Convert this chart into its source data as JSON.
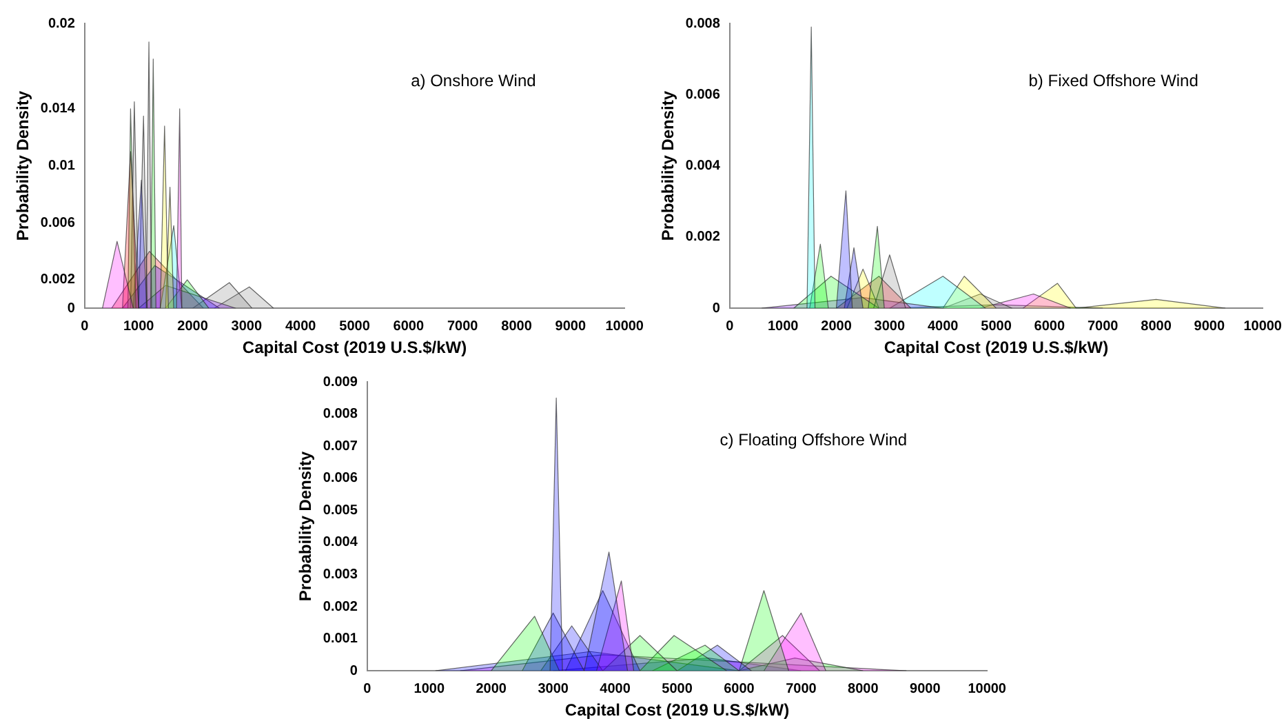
{
  "chart_data": [
    {
      "type": "area",
      "xlabel": "Capital Cost (2019 U.S.$/kW)",
      "ylabel": "Probability Density",
      "annotations": [
        "a) Onshore Wind"
      ],
      "xlim": [
        0,
        10000
      ],
      "xticks": [
        0,
        1000,
        2000,
        3000,
        4000,
        5000,
        6000,
        7000,
        8000,
        9000,
        10000
      ],
      "ylim": [
        0,
        0.02
      ],
      "yticks": [
        0,
        0.002,
        0.006,
        0.01,
        0.014,
        0.02
      ],
      "grid": false,
      "legend": false,
      "series": [
        {
          "color": "#ff00ff",
          "x": [
            330,
            600,
            900
          ],
          "values": [
            0,
            0.0047,
            0
          ]
        },
        {
          "color": "#ff0000",
          "x": [
            700,
            850,
            1000
          ],
          "values": [
            0,
            0.011,
            0
          ]
        },
        {
          "color": "#00ff00",
          "x": [
            800,
            850,
            950
          ],
          "values": [
            0,
            0.014,
            0
          ]
        },
        {
          "color": "#808080",
          "x": [
            850,
            920,
            1000
          ],
          "values": [
            0,
            0.0145,
            0
          ]
        },
        {
          "color": "#0000ff",
          "x": [
            900,
            1050,
            1150
          ],
          "values": [
            0,
            0.009,
            0
          ]
        },
        {
          "color": "#808080",
          "x": [
            1000,
            1090,
            1160
          ],
          "values": [
            0,
            0.0135,
            0
          ]
        },
        {
          "color": "#808080",
          "x": [
            1140,
            1190,
            1240
          ],
          "values": [
            0,
            0.0187,
            0
          ]
        },
        {
          "color": "#00ff00",
          "x": [
            1220,
            1270,
            1320
          ],
          "values": [
            0,
            0.0175,
            0
          ]
        },
        {
          "color": "#ffff00",
          "x": [
            1400,
            1480,
            1550
          ],
          "values": [
            0,
            0.0128,
            0
          ]
        },
        {
          "color": "#ffff00",
          "x": [
            1500,
            1580,
            1650
          ],
          "values": [
            0,
            0.0085,
            0
          ]
        },
        {
          "color": "#ff00ff",
          "x": [
            1700,
            1760,
            1800
          ],
          "values": [
            0,
            0.014,
            0
          ]
        },
        {
          "color": "#00ffff",
          "x": [
            1400,
            1650,
            1800
          ],
          "values": [
            0,
            0.0058,
            0
          ]
        },
        {
          "color": "#00ff00",
          "x": [
            1500,
            1900,
            2300
          ],
          "values": [
            0,
            0.002,
            0
          ]
        },
        {
          "color": "#8000ff",
          "x": [
            1000,
            1500,
            2800
          ],
          "values": [
            0,
            0.0016,
            0
          ]
        },
        {
          "color": "#0000ff",
          "x": [
            700,
            1300,
            2500
          ],
          "values": [
            0,
            0.003,
            0
          ]
        },
        {
          "color": "#ff0000",
          "x": [
            500,
            1200,
            2200
          ],
          "values": [
            0,
            0.004,
            0
          ]
        },
        {
          "color": "#808080",
          "x": [
            2000,
            2680,
            3100
          ],
          "values": [
            0,
            0.0018,
            0
          ]
        },
        {
          "color": "#808080",
          "x": [
            2400,
            3050,
            3500
          ],
          "values": [
            0,
            0.0015,
            0
          ]
        }
      ]
    },
    {
      "type": "area",
      "xlabel": "Capital Cost (2019 U.S.$/kW)",
      "ylabel": "Probability Density",
      "annotations": [
        "b) Fixed Offshore Wind"
      ],
      "xlim": [
        0,
        10000
      ],
      "xticks": [
        0,
        1000,
        2000,
        3000,
        4000,
        5000,
        6000,
        7000,
        8000,
        9000,
        10000
      ],
      "ylim": [
        0,
        0.008
      ],
      "yticks": [
        0,
        0.002,
        0.004,
        0.006,
        0.008
      ],
      "grid": false,
      "legend": false,
      "series": [
        {
          "color": "#00ffff",
          "x": [
            1450,
            1530,
            1600
          ],
          "values": [
            0,
            0.0079,
            0
          ]
        },
        {
          "color": "#00ff00",
          "x": [
            1500,
            1700,
            1850
          ],
          "values": [
            0,
            0.0018,
            0
          ]
        },
        {
          "color": "#0000ff",
          "x": [
            2000,
            2180,
            2300
          ],
          "values": [
            0,
            0.0033,
            0
          ]
        },
        {
          "color": "#0000ff",
          "x": [
            2150,
            2330,
            2500
          ],
          "values": [
            0,
            0.0017,
            0
          ]
        },
        {
          "color": "#00ff00",
          "x": [
            2600,
            2770,
            2900
          ],
          "values": [
            0,
            0.0023,
            0
          ]
        },
        {
          "color": "#808080",
          "x": [
            2700,
            3000,
            3300
          ],
          "values": [
            0,
            0.0015,
            0
          ]
        },
        {
          "color": "#00ff00",
          "x": [
            1200,
            1900,
            2800
          ],
          "values": [
            0,
            0.0009,
            0
          ]
        },
        {
          "color": "#ffff00",
          "x": [
            2200,
            2500,
            2800
          ],
          "values": [
            0,
            0.0011,
            0
          ]
        },
        {
          "color": "#ff0000",
          "x": [
            2000,
            2800,
            3400
          ],
          "values": [
            0,
            0.0009,
            0
          ]
        },
        {
          "color": "#8000ff",
          "x": [
            600,
            2500,
            4000
          ],
          "values": [
            0,
            0.0003,
            0
          ]
        },
        {
          "color": "#00ffff",
          "x": [
            3000,
            4000,
            4800
          ],
          "values": [
            0,
            0.0009,
            0
          ]
        },
        {
          "color": "#ffff00",
          "x": [
            4000,
            4400,
            5000
          ],
          "values": [
            0,
            0.0009,
            0
          ]
        },
        {
          "color": "#808080",
          "x": [
            4000,
            4700,
            5300
          ],
          "values": [
            0,
            0.0004,
            0
          ]
        },
        {
          "color": "#ff00ff",
          "x": [
            4700,
            5700,
            6400
          ],
          "values": [
            0,
            0.0004,
            0
          ]
        },
        {
          "color": "#ffff00",
          "x": [
            5500,
            6150,
            6500
          ],
          "values": [
            0,
            0.0007,
            0
          ]
        },
        {
          "color": "#00ff00",
          "x": [
            3000,
            5000,
            7000
          ],
          "values": [
            0,
            0.0001,
            0
          ]
        },
        {
          "color": "#ffff00",
          "x": [
            6500,
            8000,
            9300
          ],
          "values": [
            0,
            0.00025,
            0
          ]
        }
      ]
    },
    {
      "type": "area",
      "xlabel": "Capital Cost (2019 U.S.$/kW)",
      "ylabel": "Probability Density",
      "annotations": [
        "c) Floating Offshore Wind"
      ],
      "xlim": [
        0,
        10000
      ],
      "xticks": [
        0,
        1000,
        2000,
        3000,
        4000,
        5000,
        6000,
        7000,
        8000,
        9000,
        10000
      ],
      "ylim": [
        0,
        0.009
      ],
      "yticks": [
        0,
        0.001,
        0.002,
        0.003,
        0.004,
        0.005,
        0.006,
        0.007,
        0.008,
        0.009
      ],
      "grid": false,
      "legend": false,
      "series": [
        {
          "color": "#0000ff",
          "x": [
            2950,
            3050,
            3150
          ],
          "values": [
            0,
            0.0085,
            0
          ]
        },
        {
          "color": "#0000ff",
          "x": [
            3500,
            3900,
            4200
          ],
          "values": [
            0,
            0.0037,
            0
          ]
        },
        {
          "color": "#ff00ff",
          "x": [
            3700,
            4100,
            4300
          ],
          "values": [
            0,
            0.0028,
            0
          ]
        },
        {
          "color": "#00ff00",
          "x": [
            2000,
            2700,
            3100
          ],
          "values": [
            0,
            0.0017,
            0
          ]
        },
        {
          "color": "#0000ff",
          "x": [
            2500,
            3000,
            3500
          ],
          "values": [
            0,
            0.0018,
            0
          ]
        },
        {
          "color": "#0000ff",
          "x": [
            2800,
            3300,
            3800
          ],
          "values": [
            0,
            0.0014,
            0
          ]
        },
        {
          "color": "#0000ff",
          "x": [
            3200,
            3800,
            4400
          ],
          "values": [
            0,
            0.0025,
            0
          ]
        },
        {
          "color": "#00ff00",
          "x": [
            3800,
            4400,
            5000
          ],
          "values": [
            0,
            0.0011,
            0
          ]
        },
        {
          "color": "#00ff00",
          "x": [
            4400,
            4950,
            5800
          ],
          "values": [
            0,
            0.0011,
            0
          ]
        },
        {
          "color": "#00ff00",
          "x": [
            4600,
            5450,
            6000
          ],
          "values": [
            0,
            0.0008,
            0
          ]
        },
        {
          "color": "#0000ff",
          "x": [
            5000,
            5650,
            6200
          ],
          "values": [
            0,
            0.0008,
            0
          ]
        },
        {
          "color": "#00ff00",
          "x": [
            6000,
            6400,
            6800
          ],
          "values": [
            0,
            0.0025,
            0
          ]
        },
        {
          "color": "#ff00ff",
          "x": [
            6400,
            7000,
            7400
          ],
          "values": [
            0,
            0.0018,
            0
          ]
        },
        {
          "color": "#ff00ff",
          "x": [
            6000,
            6700,
            7300
          ],
          "values": [
            0,
            0.0011,
            0
          ]
        },
        {
          "color": "#00ff00",
          "x": [
            6000,
            6900,
            8000
          ],
          "values": [
            0,
            0.0004,
            0
          ]
        },
        {
          "color": "#0000ff",
          "x": [
            1100,
            3600,
            6000
          ],
          "values": [
            0,
            0.0006,
            0
          ]
        },
        {
          "color": "#ff00ff",
          "x": [
            1500,
            3800,
            8700
          ],
          "values": [
            0,
            0.0005,
            0
          ]
        },
        {
          "color": "#0000ff",
          "x": [
            3000,
            5500,
            7000
          ],
          "values": [
            0,
            0.0004,
            0
          ]
        }
      ]
    }
  ]
}
